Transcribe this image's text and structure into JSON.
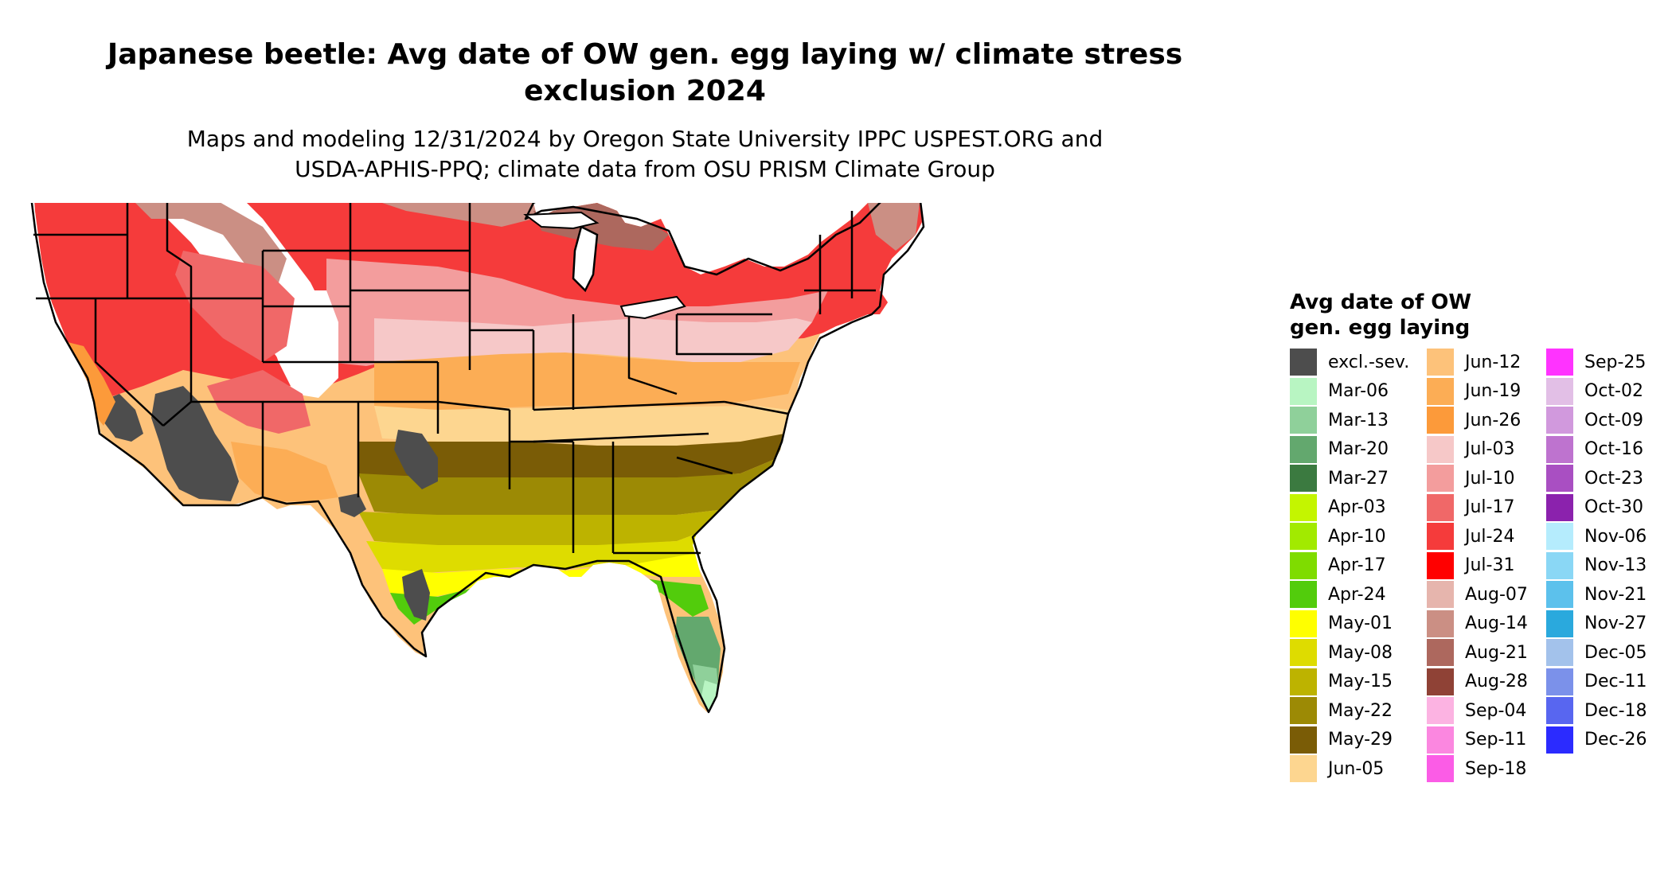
{
  "title": {
    "line1": "Japanese beetle: Avg date of OW gen. egg laying w/ climate stress",
    "line2": "exclusion 2024"
  },
  "subtitle": {
    "line1": "Maps and modeling 12/31/2024 by Oregon State University IPPC USPEST.ORG and",
    "line2": "USDA-APHIS-PPQ; climate data from OSU PRISM Climate Group"
  },
  "legend": {
    "title_line1": "Avg date of OW",
    "title_line2": "gen. egg laying",
    "columns": [
      [
        {
          "label": "excl.-sev.",
          "color": "#4d4d4d"
        },
        {
          "label": "Mar-06",
          "color": "#b8f5c2"
        },
        {
          "label": "Mar-13",
          "color": "#8fd09a"
        },
        {
          "label": "Mar-20",
          "color": "#63a86e"
        },
        {
          "label": "Mar-27",
          "color": "#3b7a40"
        },
        {
          "label": "Apr-03",
          "color": "#c4f500"
        },
        {
          "label": "Apr-10",
          "color": "#a2ea00"
        },
        {
          "label": "Apr-17",
          "color": "#7fdc00"
        },
        {
          "label": "Apr-24",
          "color": "#52cc0c"
        },
        {
          "label": "May-01",
          "color": "#ffff00"
        },
        {
          "label": "May-08",
          "color": "#dedc00"
        },
        {
          "label": "May-15",
          "color": "#bdb300"
        },
        {
          "label": "May-22",
          "color": "#9c8a05"
        },
        {
          "label": "May-29",
          "color": "#7a5c06"
        },
        {
          "label": "Jun-05",
          "color": "#fdd690"
        }
      ],
      [
        {
          "label": "Jun-12",
          "color": "#fdc27a"
        },
        {
          "label": "Jun-19",
          "color": "#fcad55"
        },
        {
          "label": "Jun-26",
          "color": "#fc9a3a"
        },
        {
          "label": "Jul-03",
          "color": "#f6c8c8"
        },
        {
          "label": "Jul-10",
          "color": "#f39d9d"
        },
        {
          "label": "Jul-17",
          "color": "#f06868"
        },
        {
          "label": "Jul-24",
          "color": "#f53b3b"
        },
        {
          "label": "Jul-31",
          "color": "#ff0000"
        },
        {
          "label": "Aug-07",
          "color": "#e6b5ad"
        },
        {
          "label": "Aug-14",
          "color": "#cb8f84"
        },
        {
          "label": "Aug-21",
          "color": "#ad685e"
        },
        {
          "label": "Aug-28",
          "color": "#8f4236"
        },
        {
          "label": "Sep-04",
          "color": "#fcb3e2"
        },
        {
          "label": "Sep-11",
          "color": "#fb87e0"
        },
        {
          "label": "Sep-18",
          "color": "#fb5ce6"
        }
      ],
      [
        {
          "label": "Sep-25",
          "color": "#ff33ff"
        },
        {
          "label": "Oct-02",
          "color": "#e2bfe6"
        },
        {
          "label": "Oct-09",
          "color": "#d199dd"
        },
        {
          "label": "Oct-16",
          "color": "#be73cf"
        },
        {
          "label": "Oct-23",
          "color": "#a94fc2"
        },
        {
          "label": "Oct-30",
          "color": "#8b22ad"
        },
        {
          "label": "Nov-06",
          "color": "#b5ecfd"
        },
        {
          "label": "Nov-13",
          "color": "#8ad7f5"
        },
        {
          "label": "Nov-21",
          "color": "#5cc1ec"
        },
        {
          "label": "Nov-27",
          "color": "#2aa9dd"
        },
        {
          "label": "Dec-05",
          "color": "#a3c2eb"
        },
        {
          "label": "Dec-11",
          "color": "#7b91ea"
        },
        {
          "label": "Dec-18",
          "color": "#5866f0"
        },
        {
          "label": "Dec-26",
          "color": "#2b2bff"
        }
      ]
    ]
  }
}
